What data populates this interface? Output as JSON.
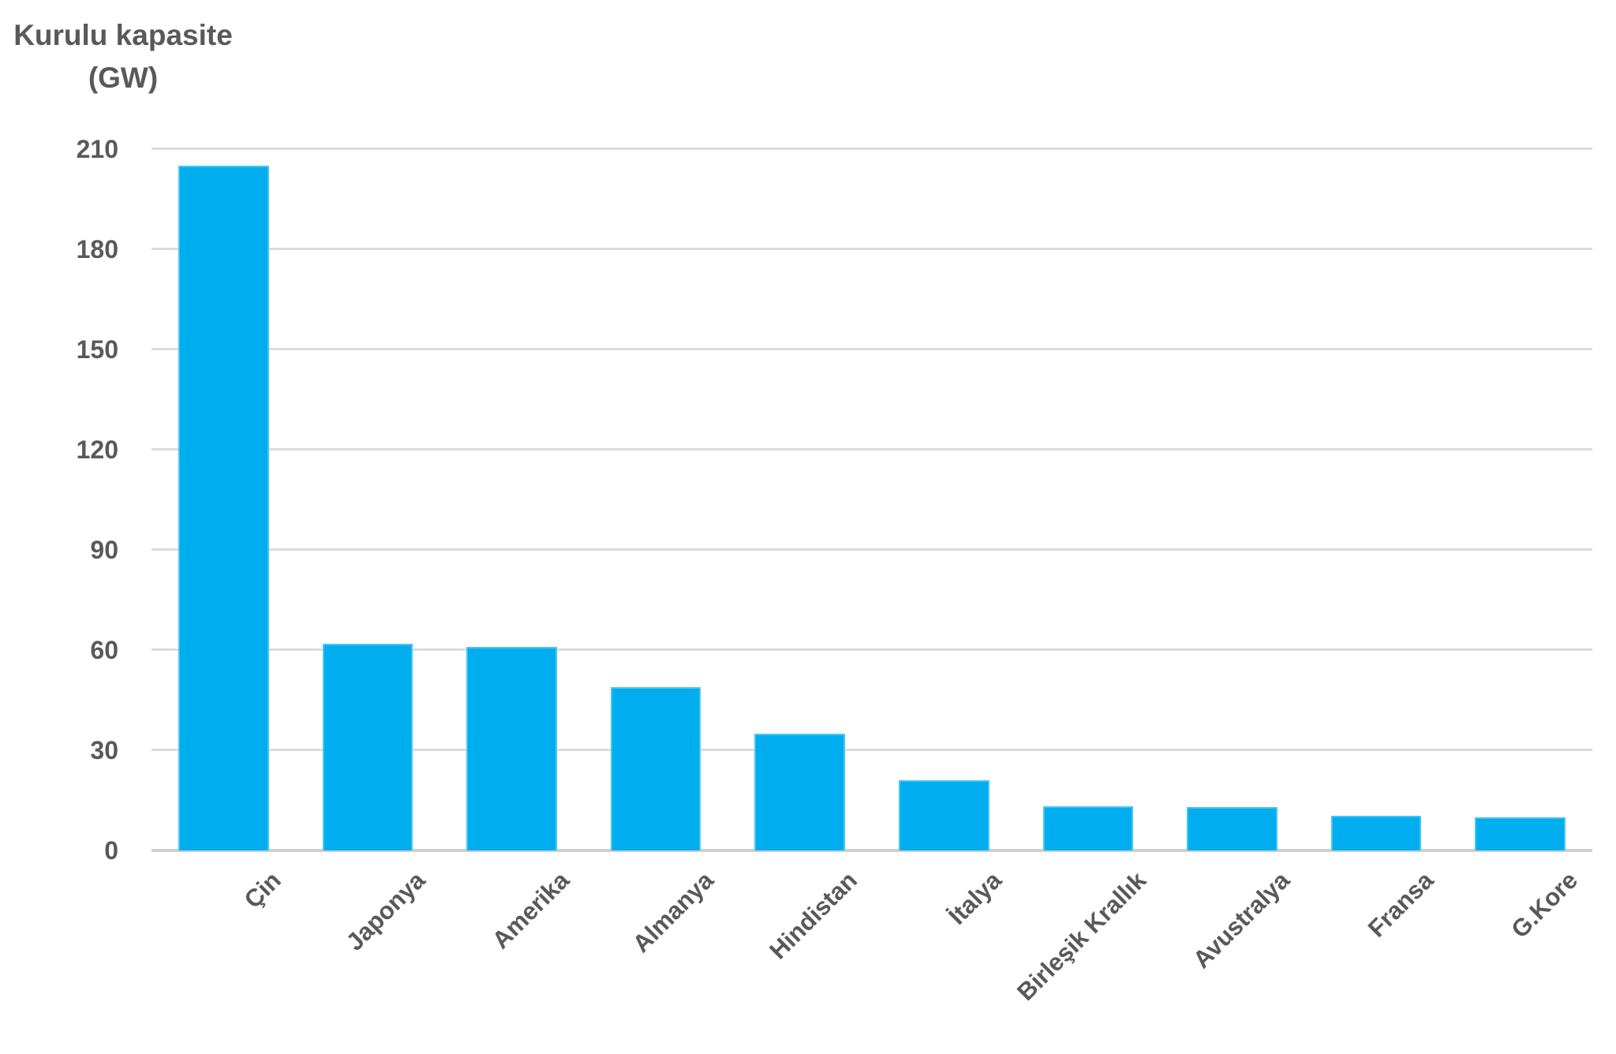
{
  "title": "Kurulu kapasite\n(GW)",
  "colors": {
    "bar": "#00AEEF",
    "gridline": "#DCDCDC",
    "axis_line": "#CFCFCF",
    "text": "#595959"
  },
  "chart_data": {
    "type": "bar",
    "title": "Kurulu kapasite (GW)",
    "xlabel": "",
    "ylabel": "Kurulu kapasite (GW)",
    "categories": [
      "Çin",
      "Japonya",
      "Amerika",
      "Almanya",
      "Hindistan",
      "İtalya",
      "Birleşik Krallık",
      "Avustralya",
      "Fransa",
      "G.Kore"
    ],
    "values": [
      205,
      62,
      61,
      49,
      35,
      21,
      13.3,
      13,
      10.5,
      10
    ],
    "ylim": [
      0,
      210
    ],
    "yticks": [
      0,
      30,
      60,
      90,
      120,
      150,
      180,
      210
    ],
    "grid": true,
    "legend_position": "none",
    "bar_label_rotation_deg": 45
  }
}
